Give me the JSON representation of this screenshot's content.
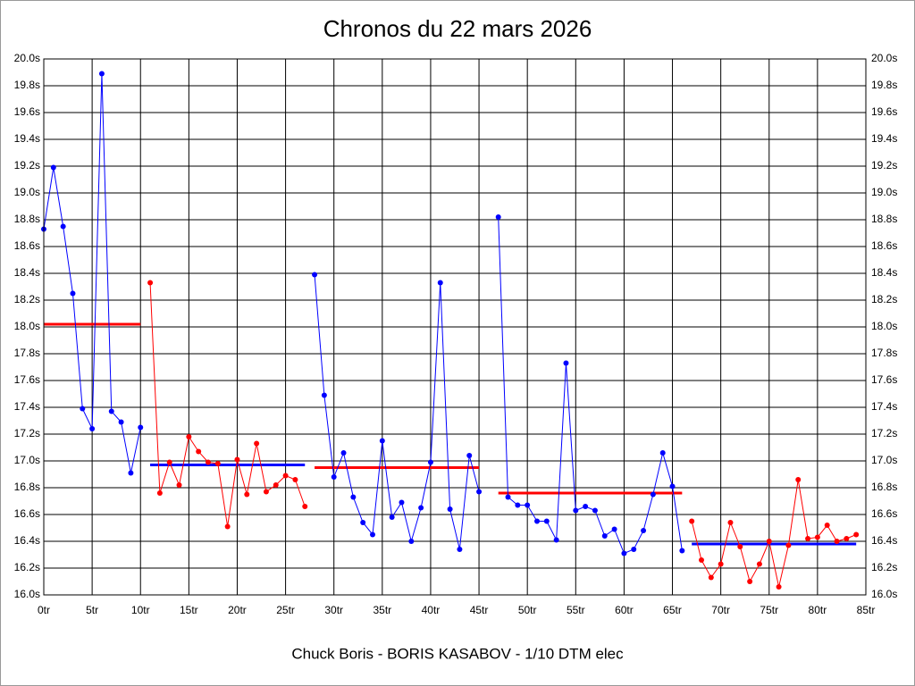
{
  "chart_data": {
    "type": "line",
    "title": "Chronos du 22 mars 2026",
    "x_label": "Chuck Boris - BORIS KASABOV - 1/10 DTM elec",
    "xlim": [
      0,
      85
    ],
    "xticks": [
      {
        "value": 0,
        "label": "0tr"
      },
      {
        "value": 5,
        "label": "5tr"
      },
      {
        "value": 10,
        "label": "10tr"
      },
      {
        "value": 15,
        "label": "15tr"
      },
      {
        "value": 20,
        "label": "20tr"
      },
      {
        "value": 25,
        "label": "25tr"
      },
      {
        "value": 30,
        "label": "30tr"
      },
      {
        "value": 35,
        "label": "35tr"
      },
      {
        "value": 40,
        "label": "40tr"
      },
      {
        "value": 45,
        "label": "45tr"
      },
      {
        "value": 50,
        "label": "50tr"
      },
      {
        "value": 55,
        "label": "55tr"
      },
      {
        "value": 60,
        "label": "60tr"
      },
      {
        "value": 65,
        "label": "65tr"
      },
      {
        "value": 70,
        "label": "70tr"
      },
      {
        "value": 75,
        "label": "75tr"
      },
      {
        "value": 80,
        "label": "80tr"
      },
      {
        "value": 85,
        "label": "85tr"
      }
    ],
    "ylim": [
      16.0,
      20.0
    ],
    "yticks": [
      {
        "value": 16.0,
        "label": "16.0s"
      },
      {
        "value": 16.2,
        "label": "16.2s"
      },
      {
        "value": 16.4,
        "label": "16.4s"
      },
      {
        "value": 16.6,
        "label": "16.6s"
      },
      {
        "value": 16.8,
        "label": "16.8s"
      },
      {
        "value": 17.0,
        "label": "17.0s"
      },
      {
        "value": 17.2,
        "label": "17.2s"
      },
      {
        "value": 17.4,
        "label": "17.4s"
      },
      {
        "value": 17.6,
        "label": "17.6s"
      },
      {
        "value": 17.8,
        "label": "17.8s"
      },
      {
        "value": 18.0,
        "label": "18.0s"
      },
      {
        "value": 18.2,
        "label": "18.2s"
      },
      {
        "value": 18.4,
        "label": "18.4s"
      },
      {
        "value": 18.6,
        "label": "18.6s"
      },
      {
        "value": 18.8,
        "label": "18.8s"
      },
      {
        "value": 19.0,
        "label": "19.0s"
      },
      {
        "value": 19.2,
        "label": "19.2s"
      },
      {
        "value": 19.4,
        "label": "19.4s"
      },
      {
        "value": 19.6,
        "label": "19.6s"
      },
      {
        "value": 19.8,
        "label": "19.8s"
      },
      {
        "value": 20.0,
        "label": "20.0s"
      }
    ],
    "grid": true,
    "series": [
      {
        "color": "#0000ff",
        "mean": 18.02,
        "mean_color": "#ff0000",
        "x": [
          0,
          1,
          2,
          3,
          4,
          5,
          6,
          7,
          8,
          9,
          10
        ],
        "values": [
          18.73,
          19.19,
          18.75,
          18.25,
          17.39,
          17.24,
          19.89,
          17.37,
          17.29,
          16.91,
          17.25
        ]
      },
      {
        "color": "#ff0000",
        "mean": 16.97,
        "mean_color": "#0000ff",
        "x": [
          11,
          12,
          13,
          14,
          15,
          16,
          17,
          18,
          19,
          20,
          21,
          22,
          23,
          24,
          25,
          26,
          27
        ],
        "values": [
          18.33,
          16.76,
          16.99,
          16.82,
          17.18,
          17.07,
          16.99,
          16.98,
          16.51,
          17.01,
          16.75,
          17.13,
          16.77,
          16.82,
          16.89,
          16.86,
          16.66
        ]
      },
      {
        "color": "#0000ff",
        "mean": 16.95,
        "mean_color": "#ff0000",
        "x": [
          28,
          29,
          30,
          31,
          32,
          33,
          34,
          35,
          36,
          37,
          38,
          39,
          40,
          41,
          42,
          43,
          44,
          45
        ],
        "values": [
          18.39,
          17.49,
          16.88,
          17.06,
          16.73,
          16.54,
          16.45,
          17.15,
          16.58,
          16.69,
          16.4,
          16.65,
          16.99,
          18.33,
          16.64,
          16.34,
          17.04,
          16.77
        ]
      },
      {
        "color": "#0000ff",
        "mean": 16.76,
        "mean_color": "#ff0000",
        "x": [
          47,
          48,
          49,
          50,
          51,
          52,
          53,
          54,
          55,
          56,
          57,
          58,
          59,
          60,
          61,
          62,
          63,
          64,
          65,
          66
        ],
        "values": [
          18.82,
          16.73,
          16.67,
          16.67,
          16.55,
          16.55,
          16.41,
          17.73,
          16.63,
          16.66,
          16.63,
          16.44,
          16.49,
          16.31,
          16.34,
          16.48,
          16.75,
          17.06,
          16.81,
          16.33
        ]
      },
      {
        "color": "#ff0000",
        "mean": 16.38,
        "mean_color": "#0000ff",
        "x": [
          67,
          68,
          69,
          70,
          71,
          72,
          73,
          74,
          75,
          76,
          77,
          78,
          79,
          80,
          81,
          82,
          83,
          84
        ],
        "values": [
          16.55,
          16.26,
          16.13,
          16.23,
          16.54,
          16.36,
          16.1,
          16.23,
          16.4,
          16.06,
          16.37,
          16.86,
          16.42,
          16.43,
          16.52,
          16.4,
          16.42,
          16.45
        ]
      }
    ]
  }
}
